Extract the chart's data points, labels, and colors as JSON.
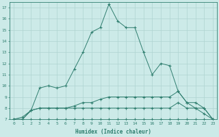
{
  "xlabel": "Humidex (Indice chaleur)",
  "x": [
    0,
    1,
    2,
    3,
    4,
    5,
    6,
    7,
    8,
    9,
    10,
    11,
    12,
    13,
    14,
    15,
    16,
    17,
    18,
    19,
    20,
    21,
    22,
    23
  ],
  "series": [
    [
      7,
      7,
      7,
      7,
      7,
      7,
      7,
      7,
      7,
      7,
      7,
      7,
      7,
      7,
      7,
      7,
      7,
      7,
      7,
      7,
      7,
      7,
      7,
      7
    ],
    [
      7,
      7,
      7.8,
      8,
      8,
      8,
      8,
      8,
      8,
      8,
      8,
      8,
      8,
      8,
      8,
      8,
      8,
      8,
      8,
      8.5,
      8,
      8,
      8,
      7
    ],
    [
      7,
      7,
      7.8,
      8,
      8,
      8,
      8,
      8.2,
      8.5,
      8.5,
      8.8,
      9,
      9,
      9,
      9,
      9,
      9,
      9,
      9,
      9.5,
      8.5,
      8.5,
      8,
      7
    ],
    [
      7,
      7.2,
      7.8,
      9.8,
      10,
      9.8,
      10,
      11.5,
      13,
      14.8,
      15.2,
      17.3,
      15.8,
      15.2,
      15.2,
      13,
      11,
      12,
      11.8,
      9.5,
      8.5,
      8,
      7.5,
      7
    ]
  ],
  "line_color": "#2e7d6e",
  "background_color": "#cceae8",
  "grid_color": "#aed4d0",
  "ylim": [
    7,
    17.5
  ],
  "xlim": [
    -0.5,
    23.5
  ],
  "yticks": [
    7,
    8,
    9,
    10,
    11,
    12,
    13,
    14,
    15,
    16,
    17
  ],
  "xticks": [
    0,
    1,
    2,
    3,
    4,
    5,
    6,
    7,
    8,
    9,
    10,
    11,
    12,
    13,
    14,
    15,
    16,
    17,
    18,
    19,
    20,
    21,
    22,
    23
  ]
}
